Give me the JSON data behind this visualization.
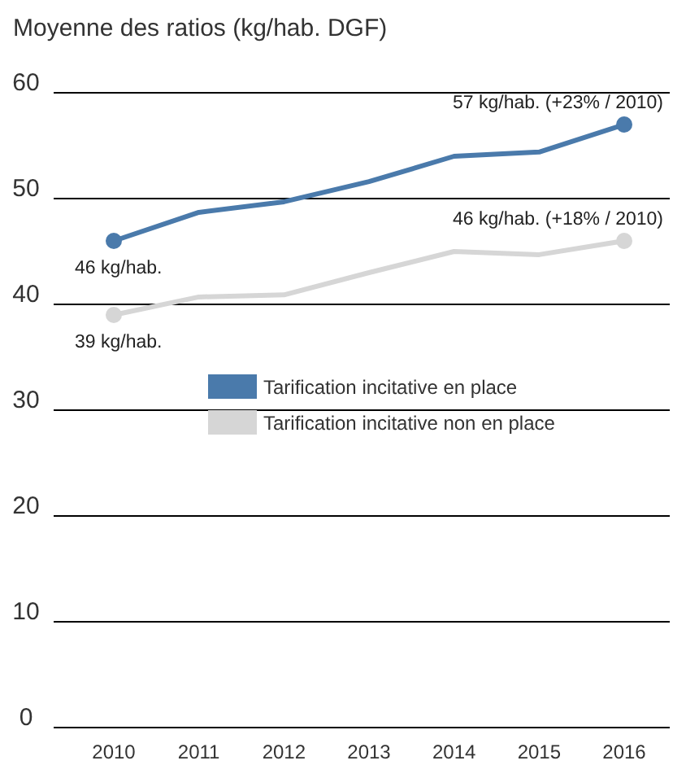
{
  "chart_data": {
    "type": "line",
    "title": "Moyenne des ratios (kg/hab. DGF)",
    "categories": [
      "2010",
      "2011",
      "2012",
      "2013",
      "2014",
      "2015",
      "2016"
    ],
    "series": [
      {
        "name": "Tarification incitative en place",
        "color": "#4a7aab",
        "values": [
          46,
          48.7,
          49.7,
          51.6,
          54,
          54.4,
          57
        ]
      },
      {
        "name": "Tarification incitative non en place",
        "color": "#d6d6d6",
        "values": [
          39,
          40.7,
          40.9,
          43,
          45,
          44.7,
          46
        ]
      }
    ],
    "annotations": [
      {
        "text": "46 kg/hab.",
        "x": "2010",
        "y": 46
      },
      {
        "text": "39 kg/hab.",
        "x": "2010",
        "y": 39
      },
      {
        "text": "57 kg/hab. (+23% / 2010)",
        "x": "2016",
        "y": 57
      },
      {
        "text": "46 kg/hab. (+18% / 2010)",
        "x": "2016",
        "y": 46
      }
    ],
    "ylim": [
      0,
      60
    ],
    "yticks": [
      0,
      10,
      20,
      30,
      40,
      50,
      60
    ],
    "grid": "y",
    "legend": "center",
    "marker": "none",
    "line_style": "solid"
  }
}
